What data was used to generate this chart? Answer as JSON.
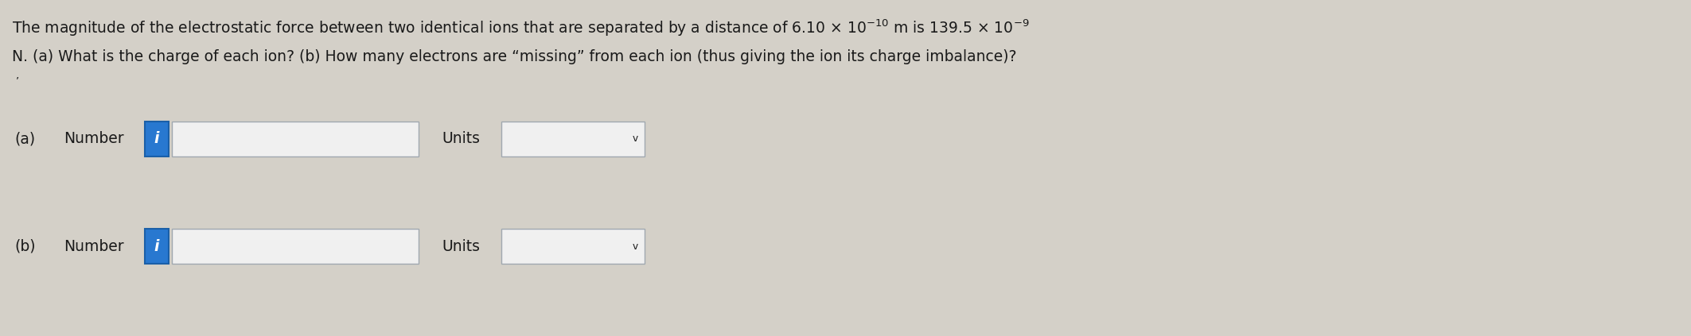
{
  "background_color": "#d4d0c8",
  "title_line1_part1": "The magnitude of the electrostatic force between two identical ions that are separated by a distance of 6.10 × 10",
  "title_line1_sup1": "-10",
  "title_line1_part2": " m is 139.5 × 10",
  "title_line1_sup2": "-9",
  "title_line2": "N. (a) What is the charge of each ion? (b) How many electrons are “missing” from each ion (thus giving the ion its charge imbalance)?",
  "label_a": "(a)",
  "label_b": "(b)",
  "number_text": "Number",
  "units_text": "Units",
  "input_box_facecolor": "#f0f0f0",
  "input_box_edgecolor": "#a0a8b0",
  "dropdown_facecolor": "#f0f0f0",
  "dropdown_edgecolor": "#a0a8b0",
  "blue_btn_facecolor": "#2878d0",
  "blue_btn_edgecolor": "#1a5fa8",
  "text_color": "#1a1a1a",
  "font_size": 13.5,
  "chevron": "v"
}
